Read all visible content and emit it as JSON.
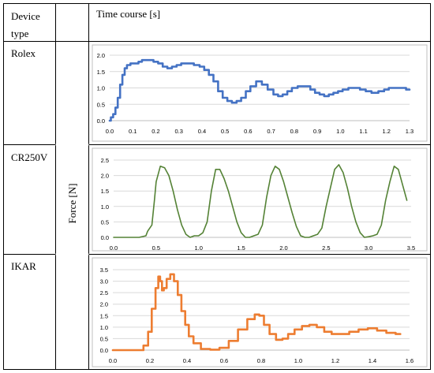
{
  "table": {
    "header_device": [
      "Device",
      "type"
    ],
    "header_time": "Time course [s]",
    "shared_ylabel": "Force [N]"
  },
  "colors": {
    "rolex": "#4472C4",
    "cr250v": "#548235",
    "ikar": "#ED7D31",
    "grid": "#d9d9d9",
    "axis": "#bfbfbf",
    "border": "#000000"
  },
  "chart_data": [
    {
      "device": "Rolex",
      "type": "line",
      "title": "",
      "xlabel": "",
      "ylabel": "",
      "xlim": [
        0,
        1.3
      ],
      "ylim": [
        0,
        2.0
      ],
      "xticks": [
        "0.0",
        "0.1",
        "0.2",
        "0.3",
        "0.4",
        "0.5",
        "0.6",
        "0.7",
        "0.8",
        "0.9",
        "1.0",
        "1.1",
        "1.2",
        "1.3"
      ],
      "yticks": [
        "0.0",
        "0.5",
        "1.0",
        "1.5",
        "2.0"
      ],
      "grid": "horizontal",
      "series": [
        {
          "x": [
            0,
            0.01,
            0.02,
            0.03,
            0.04,
            0.05,
            0.06,
            0.07,
            0.08,
            0.1,
            0.12,
            0.13,
            0.15,
            0.18,
            0.2,
            0.22,
            0.24,
            0.26,
            0.28,
            0.3,
            0.32,
            0.35,
            0.38,
            0.4,
            0.42,
            0.44,
            0.46,
            0.48,
            0.5,
            0.52,
            0.54,
            0.56,
            0.58,
            0.6,
            0.62,
            0.65,
            0.67,
            0.7,
            0.72,
            0.74,
            0.76,
            0.78,
            0.8,
            0.83,
            0.86,
            0.88,
            0.9,
            0.92,
            0.94,
            0.96,
            0.98,
            1.0,
            1.02,
            1.05,
            1.07,
            1.1,
            1.12,
            1.15,
            1.18,
            1.2,
            1.22,
            1.25,
            1.27,
            1.3
          ],
          "y": [
            0.0,
            0.1,
            0.2,
            0.4,
            0.7,
            1.1,
            1.4,
            1.6,
            1.7,
            1.75,
            1.75,
            1.8,
            1.85,
            1.85,
            1.8,
            1.75,
            1.65,
            1.6,
            1.65,
            1.7,
            1.75,
            1.75,
            1.7,
            1.65,
            1.55,
            1.4,
            1.2,
            0.9,
            0.7,
            0.6,
            0.55,
            0.6,
            0.7,
            0.9,
            1.05,
            1.2,
            1.1,
            0.95,
            0.8,
            0.75,
            0.8,
            0.9,
            1.0,
            1.05,
            1.05,
            0.95,
            0.85,
            0.8,
            0.75,
            0.8,
            0.85,
            0.9,
            0.95,
            1.0,
            1.0,
            0.95,
            0.9,
            0.85,
            0.9,
            0.95,
            1.0,
            1.0,
            1.0,
            0.95
          ]
        }
      ]
    },
    {
      "device": "CR250V",
      "type": "line",
      "title": "",
      "xlabel": "",
      "ylabel": "",
      "xlim": [
        0,
        3.5
      ],
      "ylim": [
        0,
        2.5
      ],
      "xticks": [
        "0.0",
        "0.5",
        "1.0",
        "1.5",
        "2.0",
        "2.5",
        "3.0",
        "3.5"
      ],
      "yticks": [
        "0.0",
        "0.5",
        "1.0",
        "1.5",
        "2.0",
        "2.5"
      ],
      "grid": "horizontal",
      "series": [
        {
          "x": [
            0,
            0.3,
            0.38,
            0.4,
            0.45,
            0.48,
            0.5,
            0.55,
            0.6,
            0.65,
            0.7,
            0.75,
            0.8,
            0.85,
            0.9,
            0.95,
            1.0,
            1.05,
            1.1,
            1.15,
            1.2,
            1.25,
            1.3,
            1.35,
            1.4,
            1.45,
            1.5,
            1.55,
            1.6,
            1.65,
            1.7,
            1.75,
            1.8,
            1.85,
            1.9,
            1.95,
            2.0,
            2.05,
            2.1,
            2.15,
            2.2,
            2.25,
            2.3,
            2.35,
            2.4,
            2.45,
            2.5,
            2.55,
            2.6,
            2.65,
            2.7,
            2.75,
            2.8,
            2.85,
            2.9,
            2.95,
            3.0,
            3.05,
            3.1,
            3.15,
            3.2,
            3.25,
            3.3,
            3.35,
            3.4,
            3.45
          ],
          "y": [
            0,
            0,
            0.05,
            0.2,
            0.4,
            1.2,
            1.8,
            2.3,
            2.25,
            2.0,
            1.5,
            0.9,
            0.4,
            0.1,
            0,
            0.05,
            0.05,
            0.15,
            0.5,
            1.5,
            2.2,
            2.2,
            1.9,
            1.5,
            1.0,
            0.5,
            0.15,
            0,
            0,
            0.05,
            0.1,
            0.4,
            1.3,
            2.0,
            2.3,
            2.2,
            1.8,
            1.3,
            0.8,
            0.35,
            0.05,
            0,
            0,
            0.05,
            0.1,
            0.3,
            1.0,
            1.6,
            2.2,
            2.35,
            2.1,
            1.6,
            1.0,
            0.5,
            0.15,
            0,
            0.02,
            0.05,
            0.1,
            0.4,
            1.2,
            1.8,
            2.3,
            2.2,
            1.7,
            1.2
          ]
        }
      ]
    },
    {
      "device": "IKAR",
      "type": "line",
      "title": "",
      "xlabel": "",
      "ylabel": "",
      "xlim": [
        0,
        1.6
      ],
      "ylim": [
        0,
        3.5
      ],
      "xticks": [
        "0.0",
        "0.2",
        "0.4",
        "0.6",
        "0.8",
        "1.0",
        "1.2",
        "1.4",
        "1.6"
      ],
      "yticks": [
        "0.0",
        "0.5",
        "1.0",
        "1.5",
        "2.0",
        "2.5",
        "3.0",
        "3.5"
      ],
      "grid": "horizontal",
      "series": [
        {
          "x": [
            0,
            0.15,
            0.18,
            0.2,
            0.22,
            0.24,
            0.25,
            0.26,
            0.27,
            0.28,
            0.3,
            0.32,
            0.34,
            0.36,
            0.38,
            0.4,
            0.42,
            0.45,
            0.5,
            0.55,
            0.6,
            0.65,
            0.7,
            0.75,
            0.78,
            0.8,
            0.83,
            0.86,
            0.9,
            0.93,
            0.96,
            1.0,
            1.04,
            1.08,
            1.12,
            1.16,
            1.2,
            1.25,
            1.3,
            1.35,
            1.4,
            1.45,
            1.5,
            1.55
          ],
          "y": [
            0,
            0,
            0.2,
            0.8,
            1.8,
            2.7,
            3.2,
            3.0,
            2.6,
            2.7,
            3.1,
            3.3,
            3.0,
            2.4,
            1.7,
            1.1,
            0.6,
            0.3,
            0.05,
            0.02,
            0.1,
            0.4,
            0.9,
            1.35,
            1.55,
            1.5,
            1.1,
            0.7,
            0.45,
            0.5,
            0.7,
            0.9,
            1.05,
            1.1,
            1.0,
            0.8,
            0.7,
            0.7,
            0.8,
            0.9,
            0.95,
            0.85,
            0.75,
            0.7
          ]
        }
      ]
    }
  ]
}
